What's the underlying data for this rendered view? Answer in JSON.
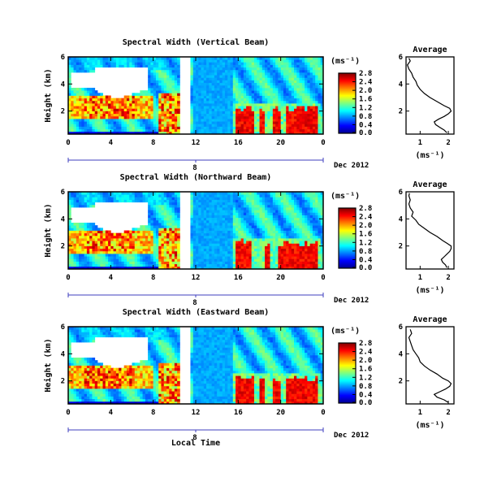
{
  "figure": {
    "xlabel": "Local Time",
    "colorbar_label": "(ms⁻¹)",
    "profile_title": "Average",
    "profile_xlabel": "(ms⁻¹)",
    "date_label": "Dec 2012",
    "day_marker": "8"
  },
  "colors": {
    "jet": [
      "#00008f",
      "#0000ff",
      "#007fff",
      "#00ffff",
      "#7fff7f",
      "#ffff00",
      "#ff7f00",
      "#ff0000",
      "#7f0000"
    ],
    "outline": "#000000",
    "date_axis": "#3f3fbf"
  },
  "chart_data": [
    {
      "type": "heatmap",
      "title": "Spectral Width (Vertical Beam)",
      "ylabel": "Height (km)",
      "x_ticks": [
        "0",
        "4",
        "8",
        "12",
        "16",
        "20",
        "0"
      ],
      "x_range_hours": [
        0,
        24
      ],
      "y_ticks": [
        "2",
        "4",
        "6"
      ],
      "y_range_km": [
        0.3,
        6
      ],
      "colorbar": {
        "ticks": [
          "0.0",
          "0.4",
          "0.8",
          "1.2",
          "1.6",
          "2.0",
          "2.4",
          "2.8"
        ],
        "range": [
          0,
          2.8
        ]
      },
      "profile": {
        "x_ticks": [
          "1",
          "2"
        ],
        "x_range": [
          0.5,
          2.2
        ],
        "y_ticks": [
          "2",
          "4",
          "6"
        ],
        "points": [
          [
            1.95,
            0.4
          ],
          [
            1.85,
            0.6
          ],
          [
            1.7,
            0.8
          ],
          [
            1.55,
            1.0
          ],
          [
            1.5,
            1.2
          ],
          [
            1.65,
            1.4
          ],
          [
            1.85,
            1.6
          ],
          [
            2.0,
            1.8
          ],
          [
            2.1,
            2.0
          ],
          [
            2.05,
            2.2
          ],
          [
            1.85,
            2.4
          ],
          [
            1.6,
            2.7
          ],
          [
            1.35,
            3.0
          ],
          [
            1.15,
            3.3
          ],
          [
            1.0,
            3.6
          ],
          [
            0.9,
            3.9
          ],
          [
            0.85,
            4.2
          ],
          [
            0.75,
            4.5
          ],
          [
            0.7,
            4.8
          ],
          [
            0.6,
            5.1
          ],
          [
            0.55,
            5.4
          ],
          [
            0.65,
            5.7
          ],
          [
            0.6,
            5.9
          ]
        ]
      }
    },
    {
      "type": "heatmap",
      "title": "Spectral Width (Northward Beam)",
      "ylabel": "Height (km)",
      "x_ticks": [
        "0",
        "4",
        "8",
        "12",
        "16",
        "20",
        "0"
      ],
      "x_range_hours": [
        0,
        24
      ],
      "y_ticks": [
        "2",
        "4",
        "6"
      ],
      "y_range_km": [
        0.3,
        6
      ],
      "colorbar": {
        "ticks": [
          "0.0",
          "0.4",
          "0.8",
          "1.2",
          "1.6",
          "2.0",
          "2.4",
          "2.8"
        ],
        "range": [
          0,
          2.8
        ]
      },
      "profile": {
        "x_ticks": [
          "1",
          "2"
        ],
        "x_range": [
          0.5,
          2.2
        ],
        "y_ticks": [
          "2",
          "4",
          "6"
        ],
        "points": [
          [
            1.95,
            0.4
          ],
          [
            1.9,
            0.6
          ],
          [
            1.8,
            0.8
          ],
          [
            1.75,
            1.0
          ],
          [
            1.85,
            1.2
          ],
          [
            1.95,
            1.4
          ],
          [
            2.05,
            1.6
          ],
          [
            2.1,
            1.8
          ],
          [
            2.1,
            2.0
          ],
          [
            1.95,
            2.2
          ],
          [
            1.8,
            2.4
          ],
          [
            1.6,
            2.7
          ],
          [
            1.35,
            3.0
          ],
          [
            1.15,
            3.3
          ],
          [
            0.95,
            3.6
          ],
          [
            0.85,
            3.9
          ],
          [
            0.7,
            4.2
          ],
          [
            0.75,
            4.5
          ],
          [
            0.65,
            4.8
          ],
          [
            0.6,
            5.1
          ],
          [
            0.65,
            5.4
          ],
          [
            0.6,
            5.7
          ],
          [
            0.62,
            5.9
          ]
        ]
      }
    },
    {
      "type": "heatmap",
      "title": "Spectral Width (Eastward Beam)",
      "ylabel": "Height (km)",
      "x_ticks": [
        "0",
        "4",
        "8",
        "12",
        "16",
        "20",
        "0"
      ],
      "x_range_hours": [
        0,
        24
      ],
      "y_ticks": [
        "2",
        "4",
        "6"
      ],
      "y_range_km": [
        0.3,
        6
      ],
      "colorbar": {
        "ticks": [
          "0.0",
          "0.4",
          "0.8",
          "1.2",
          "1.6",
          "2.0",
          "2.4",
          "2.8"
        ],
        "range": [
          0,
          2.8
        ]
      },
      "profile": {
        "x_ticks": [
          "1",
          "2"
        ],
        "x_range": [
          0.5,
          2.2
        ],
        "y_ticks": [
          "2",
          "4",
          "6"
        ],
        "points": [
          [
            2.0,
            0.4
          ],
          [
            1.85,
            0.6
          ],
          [
            1.6,
            0.8
          ],
          [
            1.5,
            1.0
          ],
          [
            1.7,
            1.2
          ],
          [
            1.9,
            1.4
          ],
          [
            2.05,
            1.6
          ],
          [
            2.1,
            1.8
          ],
          [
            2.0,
            2.0
          ],
          [
            1.8,
            2.2
          ],
          [
            1.6,
            2.5
          ],
          [
            1.35,
            2.8
          ],
          [
            1.15,
            3.1
          ],
          [
            1.0,
            3.4
          ],
          [
            0.95,
            3.7
          ],
          [
            0.85,
            4.0
          ],
          [
            0.75,
            4.3
          ],
          [
            0.7,
            4.6
          ],
          [
            0.65,
            4.9
          ],
          [
            0.6,
            5.2
          ],
          [
            0.7,
            5.5
          ],
          [
            0.65,
            5.8
          ]
        ]
      }
    }
  ]
}
